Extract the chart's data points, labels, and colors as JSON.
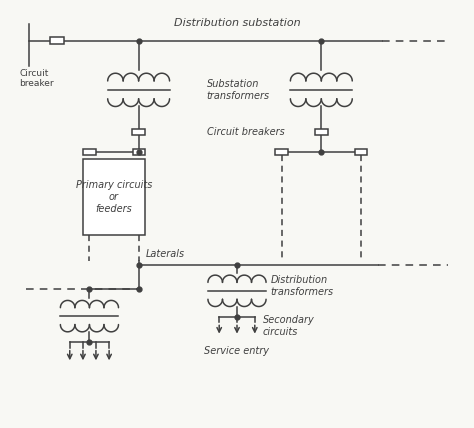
{
  "bg_color": "#f8f8f4",
  "line_color": "#404040",
  "text_color": "#404040",
  "figsize": [
    4.74,
    4.28
  ],
  "dpi": 100,
  "labels": {
    "dist_substation": "Distribution substation",
    "circuit_breaker": "Circuit\nbreaker",
    "substation_transformers": "Substation\ntransformers",
    "circuit_breakers": "Circuit breakers",
    "primary_circuits": "Primary circuits\nor\nfeeders",
    "laterals": "Laterals",
    "dist_transformers": "Distribution\ntransformers",
    "secondary_circuits": "Secondary\ncircuits",
    "service_entry": "Service entry"
  }
}
